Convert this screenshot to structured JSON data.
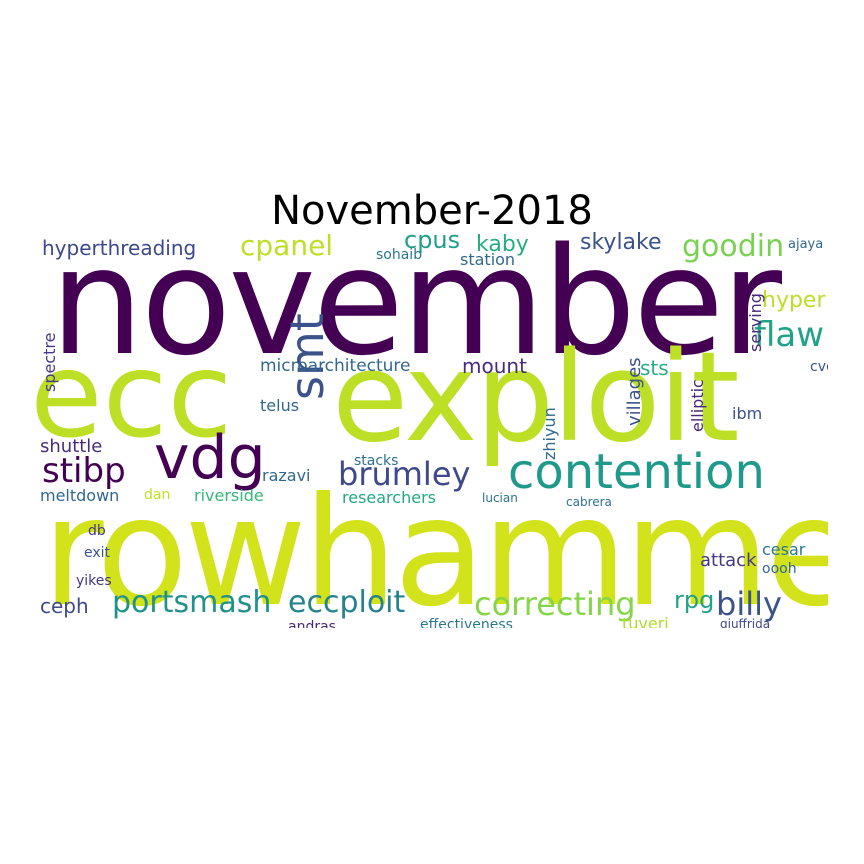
{
  "title": "November-2018",
  "palette": {
    "dark_purple": "#440154",
    "blue": "#31688e",
    "teal": "#21918c",
    "green": "#35b779",
    "yellow_green": "#bddf26"
  },
  "words": [
    {
      "text": "november",
      "color": "#440154"
    },
    {
      "text": "rowhammer",
      "color": "#d2e21b"
    },
    {
      "text": "ecc",
      "color": "#bddf26"
    },
    {
      "text": "exploit",
      "color": "#bddf26"
    },
    {
      "text": "vdg",
      "color": "#440154"
    },
    {
      "text": "contention",
      "color": "#1f9a8a"
    },
    {
      "text": "smt",
      "color": "#3b528b"
    },
    {
      "text": "flaw",
      "color": "#20a386"
    },
    {
      "text": "stibp",
      "color": "#440154"
    },
    {
      "text": "brumley",
      "color": "#3e4989"
    },
    {
      "text": "cpanel",
      "color": "#bddf26"
    },
    {
      "text": "goodin",
      "color": "#7ad151"
    },
    {
      "text": "portsmash",
      "color": "#21918c"
    },
    {
      "text": "eccploit",
      "color": "#26828e"
    },
    {
      "text": "correcting",
      "color": "#86d549"
    },
    {
      "text": "billy",
      "color": "#3b528b"
    },
    {
      "text": "hyperthreading",
      "color": "#3e4989"
    },
    {
      "text": "cpus",
      "color": "#1f9e89"
    },
    {
      "text": "kaby",
      "color": "#27ad81"
    },
    {
      "text": "skylake",
      "color": "#3b528b"
    },
    {
      "text": "hyper",
      "color": "#bddf26"
    },
    {
      "text": "mount",
      "color": "#472d7b"
    },
    {
      "text": "sts",
      "color": "#27ad81"
    },
    {
      "text": "microarchitecture",
      "color": "#31688e"
    },
    {
      "text": "ceph",
      "color": "#3e4989"
    },
    {
      "text": "rpg",
      "color": "#20a386"
    },
    {
      "text": "meltdown",
      "color": "#31688e"
    },
    {
      "text": "telus",
      "color": "#31688e"
    },
    {
      "text": "razavi",
      "color": "#31688e"
    },
    {
      "text": "riverside",
      "color": "#35b779"
    },
    {
      "text": "researchers",
      "color": "#22a884"
    },
    {
      "text": "attack",
      "color": "#443983"
    },
    {
      "text": "shuttle",
      "color": "#472d7b"
    },
    {
      "text": "station",
      "color": "#31688e"
    },
    {
      "text": "sohaib",
      "color": "#2a788e"
    },
    {
      "text": "villages",
      "color": "#3b528b"
    },
    {
      "text": "zhiyun",
      "color": "#31688e"
    },
    {
      "text": "elliptic",
      "color": "#482878"
    },
    {
      "text": "ibm",
      "color": "#3b528b"
    },
    {
      "text": "serving",
      "color": "#482878"
    },
    {
      "text": "spectre",
      "color": "#443983"
    },
    {
      "text": "stacks",
      "color": "#2c728e"
    },
    {
      "text": "effectiveness",
      "color": "#2a788e"
    },
    {
      "text": "andras",
      "color": "#482878"
    },
    {
      "text": "tuveri",
      "color": "#addc30"
    },
    {
      "text": "cesar",
      "color": "#2a788e"
    },
    {
      "text": "giuffrida",
      "color": "#3e4989"
    },
    {
      "text": "exit",
      "color": "#3b528b"
    },
    {
      "text": "yikes",
      "color": "#443983"
    },
    {
      "text": "dan",
      "color": "#c2df23"
    },
    {
      "text": "lucian",
      "color": "#2c728e"
    },
    {
      "text": "cabrera",
      "color": "#2c728e"
    },
    {
      "text": "ajaya",
      "color": "#31688e"
    },
    {
      "text": "cve",
      "color": "#3b528b"
    },
    {
      "text": "db",
      "color": "#443983"
    },
    {
      "text": "oooh",
      "color": "#31688e"
    }
  ]
}
